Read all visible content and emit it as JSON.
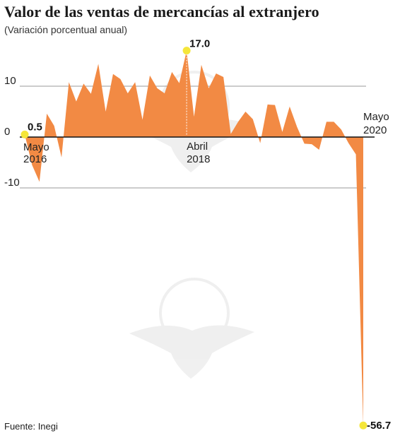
{
  "header": {
    "title": "Valor de las ventas de mercancías al extranjero",
    "subtitle": "(Variación porcentual anual)"
  },
  "footer": {
    "source": "Fuente: Inegi"
  },
  "colors": {
    "area": "#f28a44",
    "grid": "#999999",
    "zero": "#111111",
    "highlight": "#f5e63a"
  },
  "chart_data": {
    "type": "area",
    "title": "Valor de las ventas de mercancías al extranjero",
    "subtitle": "(Variación porcentual anual)",
    "xlabel": "",
    "ylabel": "",
    "ylim": [
      -57,
      17
    ],
    "x_range": [
      "2016-05",
      "2020-05"
    ],
    "y_ticks": [
      10,
      0,
      -10
    ],
    "y_tick_labels": [
      "10",
      "0",
      "-10"
    ],
    "grid": true,
    "series": [
      {
        "values": [
          0.5,
          -5.5,
          -8.8,
          4.6,
          2.2,
          -4.0,
          10.8,
          7.0,
          10.5,
          8.5,
          14.4,
          5.0,
          12.4,
          11.4,
          8.6,
          10.8,
          3.4,
          12.1,
          9.6,
          8.6,
          12.8,
          10.6,
          17.0,
          4.0,
          14.2,
          9.6,
          12.5,
          11.8,
          0.6,
          3.0,
          5.0,
          3.5,
          -1.2,
          6.4,
          6.3,
          1.0,
          6.0,
          2.0,
          -1.3,
          -1.4,
          -2.5,
          3.0,
          3.0,
          1.5,
          -1.2,
          -3.4,
          -56.7
        ]
      }
    ],
    "annotations": [
      {
        "label": "0.5",
        "point": "first"
      },
      {
        "label": "17.0",
        "point": "max"
      },
      {
        "label": "-56.7",
        "point": "last"
      }
    ],
    "date_labels": [
      {
        "line1": "Mayo",
        "line2": "2016",
        "index": 0
      },
      {
        "line1": "Abril",
        "line2": "2018",
        "index": 22
      },
      {
        "line1": "Mayo",
        "line2": "2020",
        "index": 46
      }
    ]
  }
}
